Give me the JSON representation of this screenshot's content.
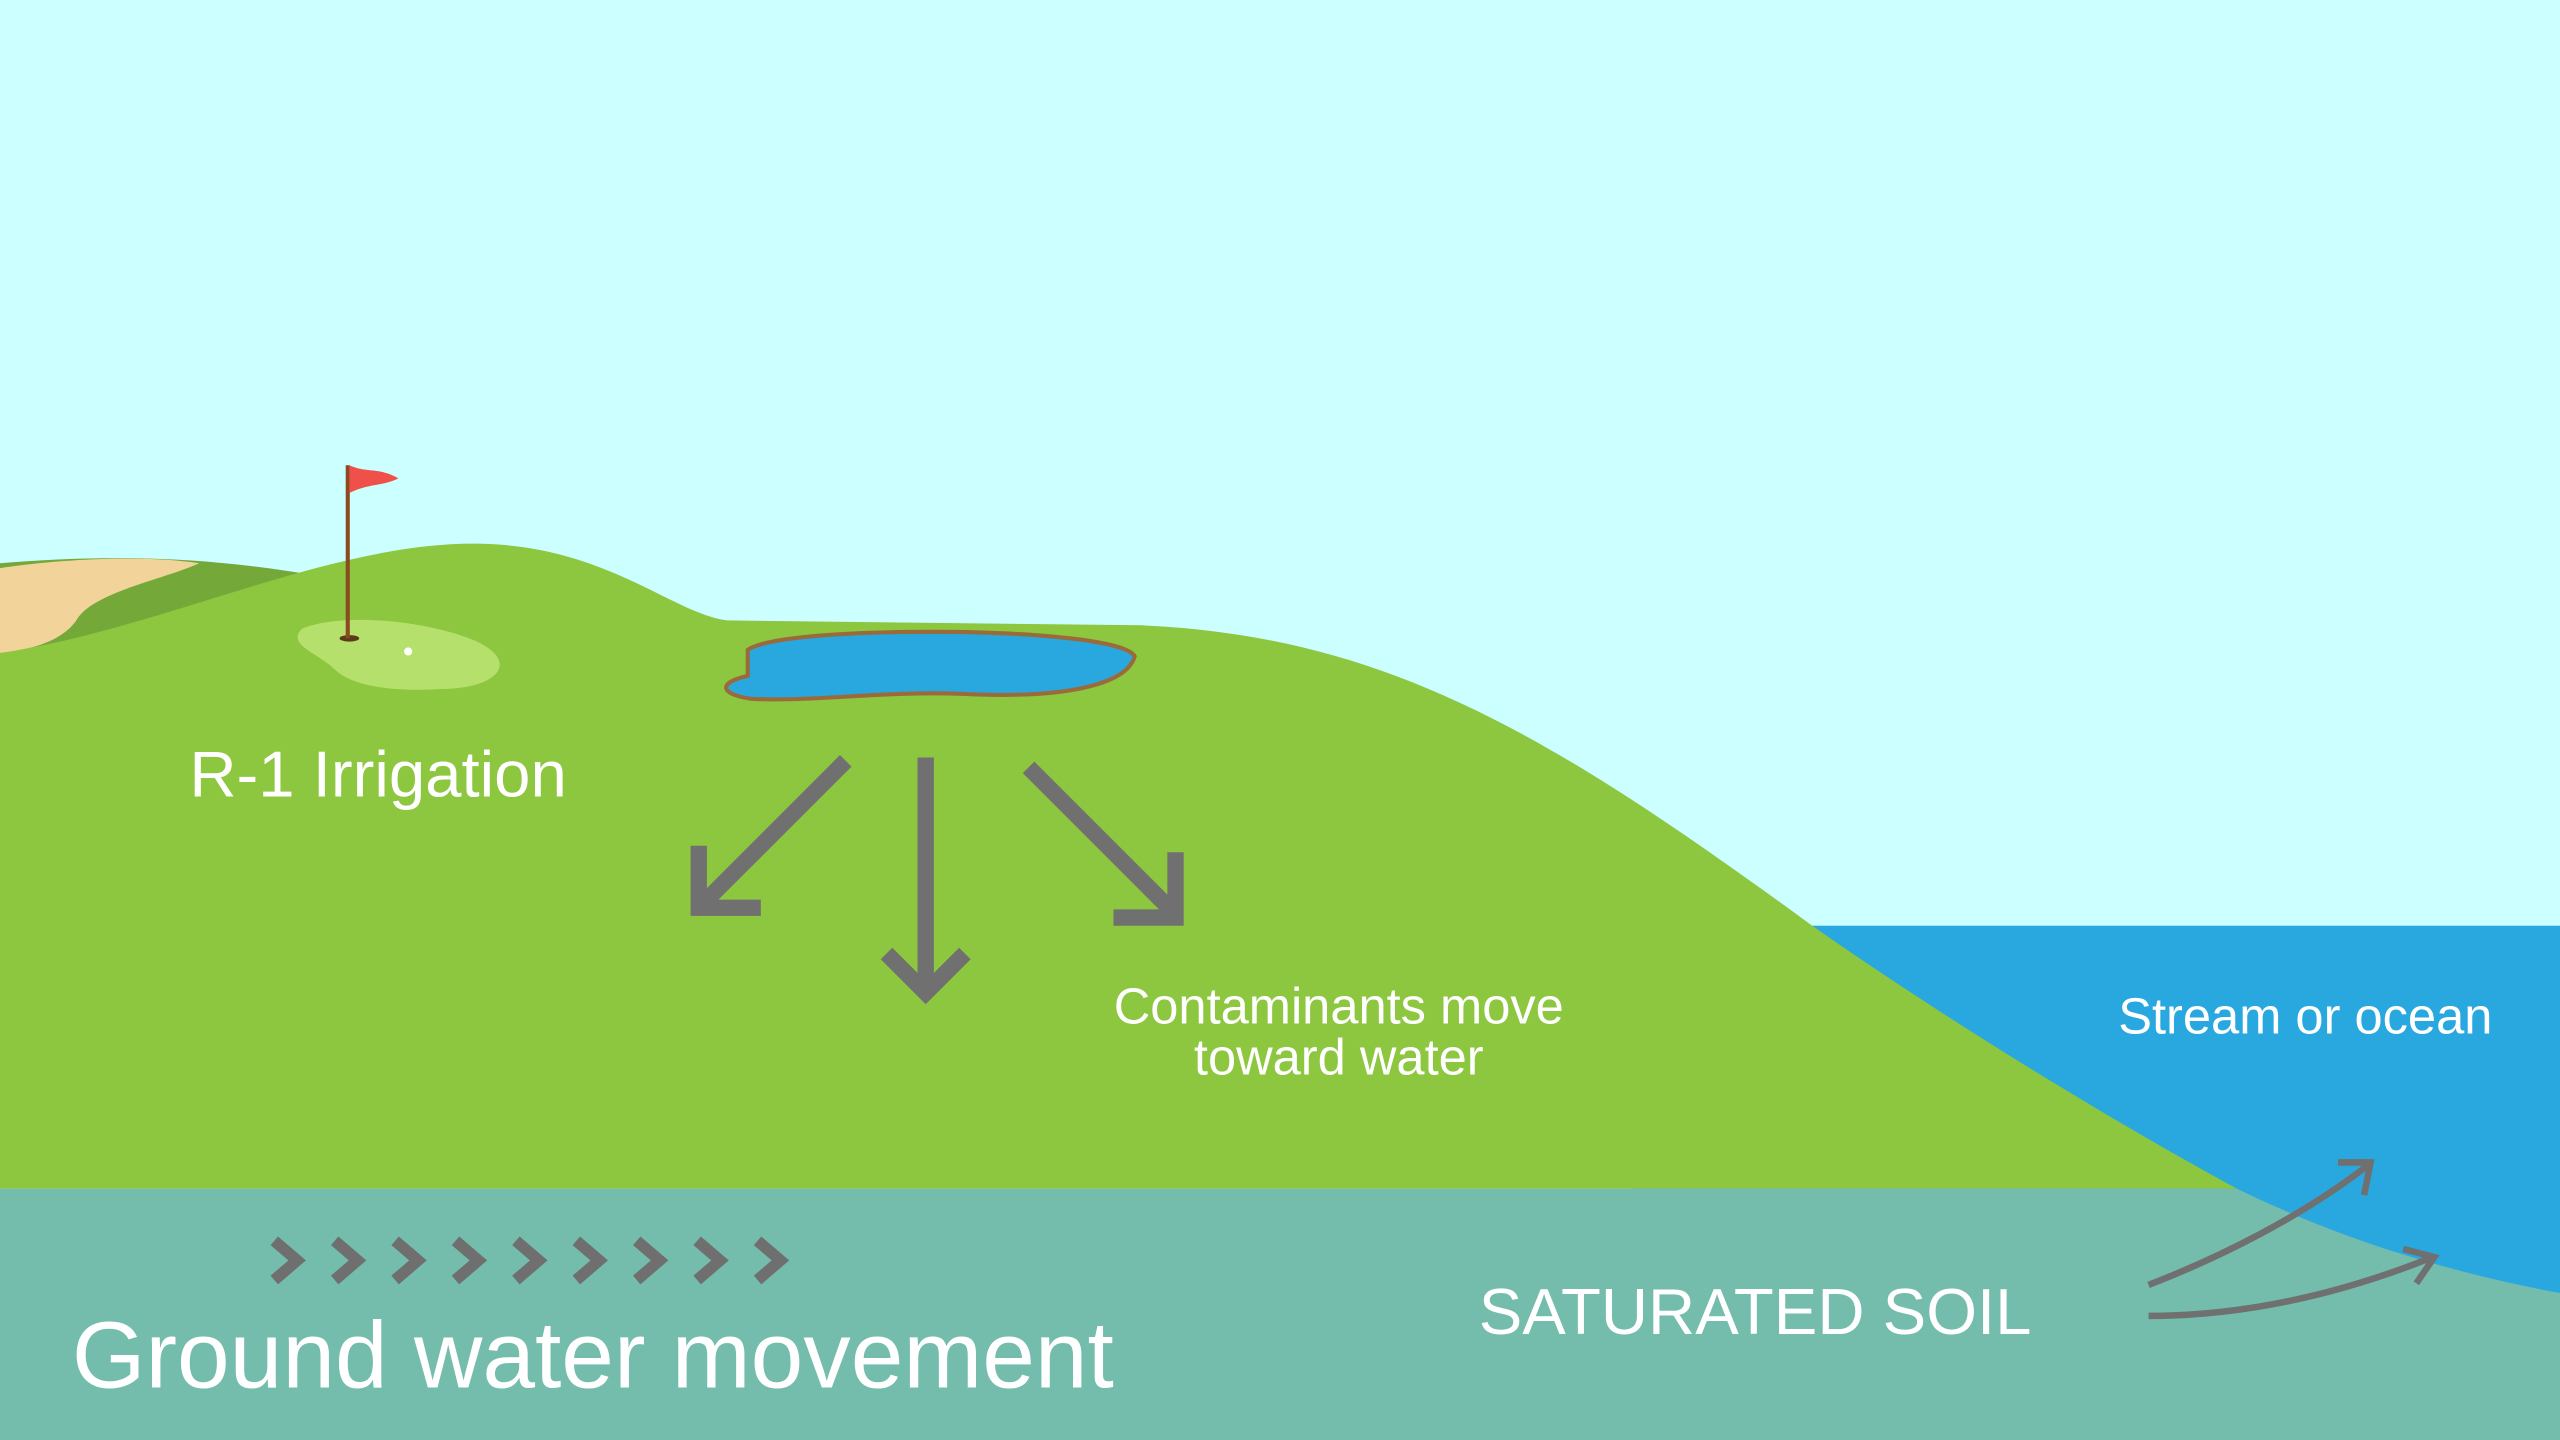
{
  "labels": {
    "irrigation": "R-1 Irrigation",
    "contaminants": [
      "Contaminants move",
      "toward water"
    ],
    "stream": "Stream or ocean",
    "saturated": "SATURATED SOIL",
    "groundwater": "Ground water movement"
  }
}
